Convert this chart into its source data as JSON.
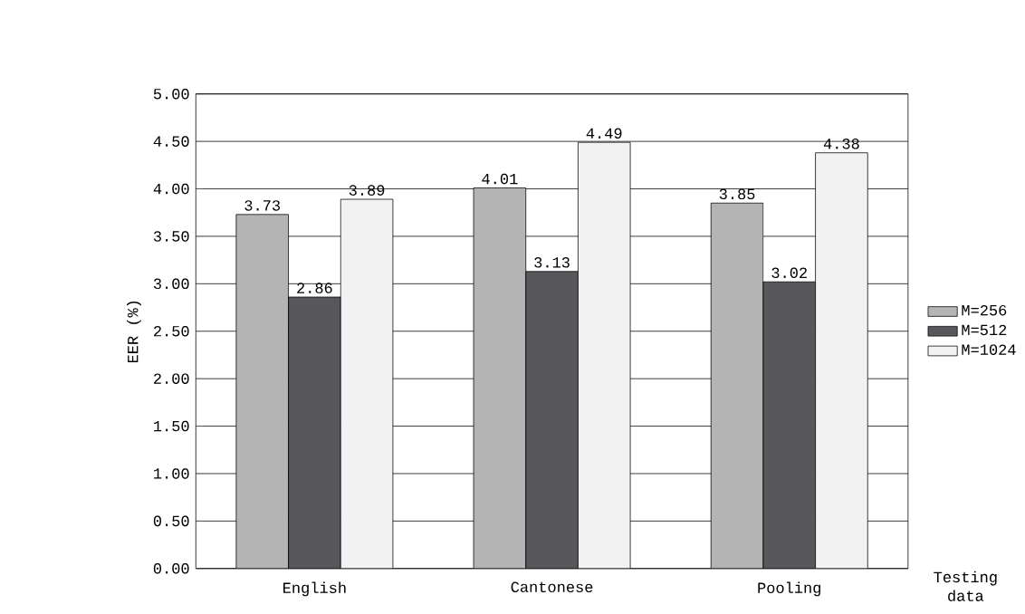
{
  "chart_data": {
    "type": "bar",
    "xlabel": "Testing data",
    "ylabel": "EER (%)",
    "categories": [
      "English",
      "Cantonese",
      "Pooling"
    ],
    "series": [
      {
        "name": "M=256",
        "color": "#b4b4b4",
        "values": [
          3.73,
          4.01,
          3.85
        ],
        "value_labels": [
          "3.73",
          "4.01",
          "3.85"
        ]
      },
      {
        "name": "M=512",
        "color": "#58585c",
        "values": [
          2.86,
          3.13,
          3.02
        ],
        "value_labels": [
          "2.86",
          "3.13",
          "3.02"
        ]
      },
      {
        "name": "M=1024",
        "color": "#f2f2f2",
        "values": [
          3.89,
          4.49,
          4.38
        ],
        "value_labels": [
          "3.89",
          "4.49",
          "4.38"
        ]
      }
    ],
    "ylim": [
      0,
      5
    ],
    "yticks": [
      {
        "value": 0,
        "label": "0.00"
      },
      {
        "value": 0.5,
        "label": "0.50"
      },
      {
        "value": 1,
        "label": "1.00"
      },
      {
        "value": 1.5,
        "label": "1.50"
      },
      {
        "value": 2,
        "label": "2.00"
      },
      {
        "value": 2.5,
        "label": "2.50"
      },
      {
        "value": 3,
        "label": "3.00"
      },
      {
        "value": 3.5,
        "label": "3.50"
      },
      {
        "value": 4,
        "label": "4.00"
      },
      {
        "value": 4.5,
        "label": "4.50"
      },
      {
        "value": 5,
        "label": "5.00"
      }
    ],
    "grid": "y",
    "legend": "right"
  }
}
